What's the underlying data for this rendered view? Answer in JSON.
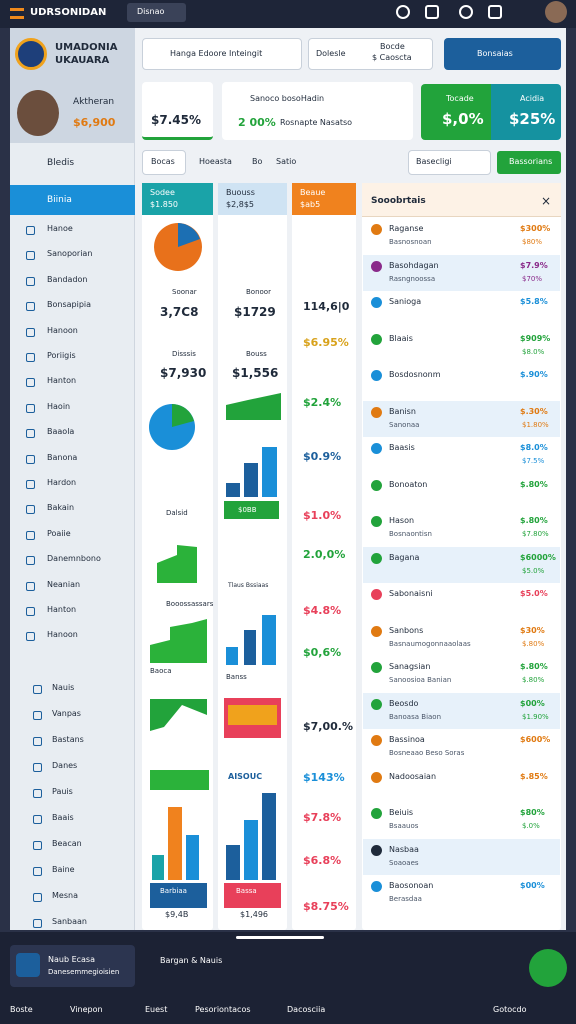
{
  "top_bar": {
    "brand": "UDRSONIDAN",
    "menu": "Disnao"
  },
  "sidebar": {
    "title": "UMADONIA",
    "subtitle": "UKAUARA",
    "profile_name": "Aktheran",
    "profile_amount": "$6,900",
    "section": "Bledis",
    "active": "Biinia",
    "items": [
      "Hanoe",
      "Sanoporian",
      "Bandadon",
      "Bonsapipia",
      "Hanoon",
      "Poriigis",
      "Hanton",
      "Haoin",
      "Baaola",
      "Banona",
      "Hardon",
      "Bakain",
      "Poaiie",
      "Danemnbono",
      "Neanian",
      "Hanton",
      "Hanoon"
    ],
    "sub_items": [
      "Nauis",
      "Vanpas",
      "Bastans",
      "Danes",
      "Pauis",
      "Baais",
      "Beacan",
      "Baine",
      "Mesna",
      "Sanbaan"
    ]
  },
  "toolbar": {
    "search": "Hanga Edoore Inteingit",
    "filter": "Dolesle",
    "price_label": "Bocde",
    "price": "$ Caoscta",
    "button": "Bonsaias"
  },
  "summary": {
    "value": "$7.45%",
    "card_title": "Sanoco bosoHadin",
    "card_value": "2 00%",
    "card_note": "Rosnapte Nasatso",
    "tiles": [
      {
        "label": "Tocade",
        "value": "$,0%"
      },
      {
        "label": "Acidia",
        "value": "$25%"
      }
    ]
  },
  "tabs": [
    "Bocas",
    "Hoeasta",
    "Bo",
    "Satio"
  ],
  "select": "Basecligi",
  "action": "Bassorians",
  "columns": [
    {
      "title": "Sodee",
      "value": "$1.850",
      "cells": [
        {
          "label": "Soonar",
          "value": "3,7C8"
        },
        {
          "label": "Disssis",
          "value": "$7,930"
        },
        {
          "label": "Dalsid"
        },
        {
          "label": "Booossassars"
        },
        {
          "label": "Baoca"
        },
        {
          "label": "Barbiaa",
          "value": "$9,4B"
        }
      ]
    },
    {
      "title": "Buouss",
      "value": "$2,8$5",
      "cells": [
        {
          "label": "Bonoor",
          "value": "$1729"
        },
        {
          "label": "Bouss",
          "value": "$1,556"
        },
        {
          "label": "$0BB",
          "value": "Tlaus Bssiaas"
        },
        {
          "label": "Banss"
        },
        {
          "label": "AISOUC"
        },
        {
          "label": "Bassa",
          "value": "$1,496"
        }
      ]
    },
    {
      "title": "Beaue",
      "value": "$ab5",
      "values": [
        "114,6|0",
        "$6.95%",
        "$2.4%",
        "$0.9%",
        "$1.0%",
        "2.0,0%",
        "$4.8%",
        "$0,6%",
        "$7,00.%",
        "$143%",
        "$7.8%",
        "$6.8%",
        "$8.75%"
      ]
    }
  ],
  "panel": {
    "title": "Sooobrtais",
    "rows": [
      {
        "name": "Raganse",
        "sub": "Basnosnoan",
        "value": "$300%",
        "subvalue": "$80%"
      },
      {
        "name": "Basohdagan",
        "sub": "Rasngnoossa",
        "value": "$7.9%",
        "subvalue": "$70%"
      },
      {
        "name": "Sanioga",
        "sub": "",
        "value": "$5.8%",
        "subvalue": ""
      },
      {
        "name": "Blaais",
        "sub": "",
        "value": "$909%",
        "subvalue": "$8.0%"
      },
      {
        "name": "Bosdosnonm",
        "sub": "",
        "value": "$.90%",
        "subvalue": ""
      },
      {
        "name": "Banisn",
        "sub": "Sanonaa",
        "value": "$.30%",
        "subvalue": "$1.80%"
      },
      {
        "name": "Baasis",
        "sub": "",
        "value": "$8.0%",
        "subvalue": "$7.5%"
      },
      {
        "name": "Bonoaton",
        "sub": "",
        "value": "$.80%",
        "subvalue": ""
      },
      {
        "name": "Hason",
        "sub": "Bosnaontisn",
        "value": "$.80%",
        "subvalue": "$7.80%"
      },
      {
        "name": "Bagana",
        "sub": "",
        "value": "$6000%",
        "subvalue": "$5.0%"
      },
      {
        "name": "Sabonaisni",
        "sub": "",
        "value": "$5.0%",
        "subvalue": ""
      },
      {
        "name": "Sanbons",
        "sub": "Basnaumogonnaaolaas",
        "value": "$30%",
        "subvalue": "$.80%"
      },
      {
        "name": "Sanagsian",
        "sub": "Sanoosioa Banian",
        "value": "$.80%",
        "subvalue": "$.80%"
      },
      {
        "name": "Beosdo",
        "sub": "Banoasa Biaon",
        "value": "$00%",
        "subvalue": "$1.90%"
      },
      {
        "name": "Bassinoa",
        "sub": "Bosneaao Beso Soras",
        "value": "$600%",
        "subvalue": ""
      },
      {
        "name": "Nadoosaian",
        "sub": "",
        "value": "$.85%",
        "subvalue": ""
      },
      {
        "name": "Beiuis",
        "sub": "Bsaauos",
        "value": "$80%",
        "subvalue": "$.0%"
      },
      {
        "name": "Nasbaa",
        "sub": "Soaoaes",
        "value": "",
        "subvalue": ""
      },
      {
        "name": "Baosonoan",
        "sub": "Berasdaa",
        "value": "$00%",
        "subvalue": ""
      }
    ]
  },
  "footer": {
    "card_title": "Naub Ecasa",
    "card_sub": "Danesemmegioisien",
    "link": "Bargan & Nauis",
    "nav": [
      "Boste",
      "Vinepon",
      "Euest",
      "Pesoriontacos",
      "Dacosciia",
      "Gotocdo"
    ]
  }
}
